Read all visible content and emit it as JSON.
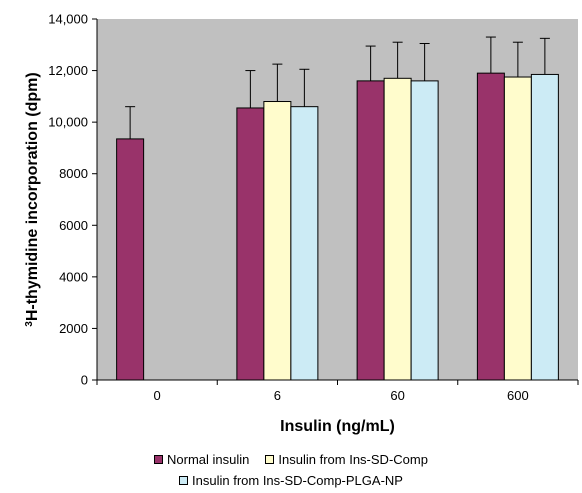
{
  "chart_data": {
    "type": "bar",
    "xlabel": "Insulin (ng/mL)",
    "ylabel_superscript": "3",
    "ylabel_rest": "H-thymidine incorporation (dpm)",
    "ylim": [
      0,
      14000
    ],
    "yticks": [
      0,
      2000,
      4000,
      6000,
      8000,
      10000,
      12000,
      14000
    ],
    "ytick_labels": [
      "0",
      "2000",
      "4000",
      "6000",
      "8000",
      "10,000",
      "12,000",
      "14,000"
    ],
    "categories": [
      "0",
      "6",
      "60",
      "600"
    ],
    "grid": false,
    "legend_position": "bottom",
    "series": [
      {
        "name": "Normal insulin",
        "color": "#99336a",
        "values": [
          9350,
          10550,
          11600,
          11900
        ],
        "errors": [
          1250,
          1450,
          1350,
          1400
        ]
      },
      {
        "name": "Insulin from Ins-SD-Comp",
        "color": "#fffccc",
        "values": [
          null,
          10800,
          11700,
          11750
        ],
        "errors": [
          null,
          1450,
          1400,
          1350
        ]
      },
      {
        "name": "Insulin from Ins-SD-Comp-PLGA-NP",
        "color": "#ccebf5",
        "values": [
          null,
          10600,
          11600,
          11850
        ],
        "errors": [
          null,
          1450,
          1450,
          1400
        ]
      }
    ],
    "plot_background": "#c0c0c0"
  }
}
